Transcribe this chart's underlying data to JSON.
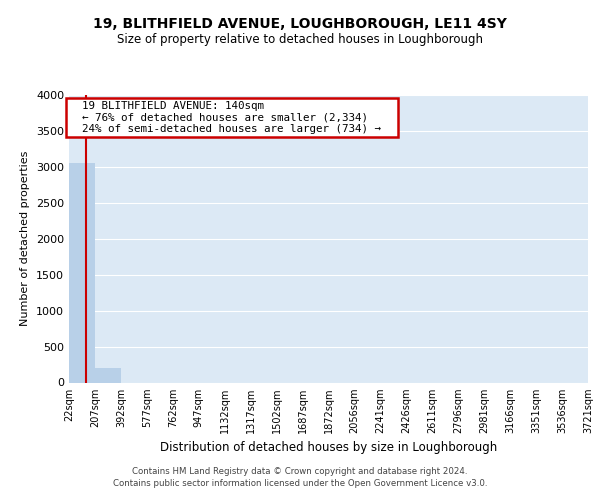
{
  "title1": "19, BLITHFIELD AVENUE, LOUGHBOROUGH, LE11 4SY",
  "title2": "Size of property relative to detached houses in Loughborough",
  "xlabel": "Distribution of detached houses by size in Loughborough",
  "ylabel": "Number of detached properties",
  "bin_edges": [
    22,
    207,
    392,
    577,
    762,
    947,
    1132,
    1317,
    1502,
    1687,
    1872,
    2056,
    2241,
    2426,
    2611,
    2796,
    2981,
    3166,
    3351,
    3536,
    3721
  ],
  "bar_heights": [
    3050,
    200,
    0,
    0,
    0,
    0,
    0,
    0,
    0,
    0,
    0,
    0,
    0,
    0,
    0,
    0,
    0,
    0,
    0,
    0
  ],
  "bar_color": "#b8d0e8",
  "property_size": 140,
  "property_line_color": "#cc0000",
  "annotation_text": "  19 BLITHFIELD AVENUE: 140sqm  \n  ← 76% of detached houses are smaller (2,334)  \n  24% of semi-detached houses are larger (734) →  ",
  "annotation_box_color": "#cc0000",
  "ylim": [
    0,
    4000
  ],
  "yticks": [
    0,
    500,
    1000,
    1500,
    2000,
    2500,
    3000,
    3500,
    4000
  ],
  "background_color": "#dce9f5",
  "grid_color": "#ffffff",
  "footer1": "Contains HM Land Registry data © Crown copyright and database right 2024.",
  "footer2": "Contains public sector information licensed under the Open Government Licence v3.0."
}
